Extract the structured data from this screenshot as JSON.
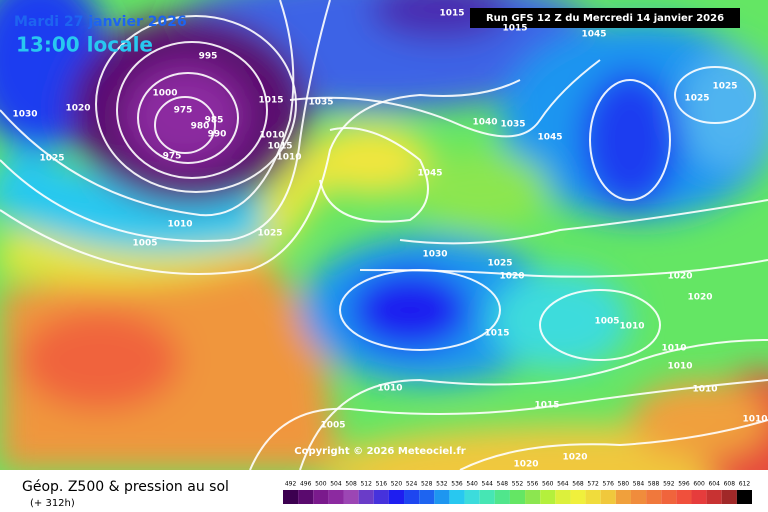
{
  "header": {
    "date": "Mardi 27 janvier 2026",
    "time": "13:00 locale",
    "run": "Run GFS 12 Z du Mercredi 14 janvier 2026"
  },
  "copyright": "Copyright © 2026 Meteociel.fr",
  "footer": {
    "title": "Géop. Z500 & pression au sol",
    "lead": "(+ 312h)"
  },
  "legend": {
    "values": [
      492,
      496,
      500,
      504,
      508,
      512,
      516,
      520,
      524,
      528,
      532,
      536,
      540,
      544,
      548,
      552,
      556,
      560,
      564,
      568,
      572,
      576,
      580,
      584,
      588,
      592,
      596,
      600,
      604,
      608,
      612
    ],
    "colors": [
      "#3c0050",
      "#5a0a6e",
      "#7a1a8c",
      "#8c2aa0",
      "#9c46b4",
      "#6a3cc8",
      "#4632dc",
      "#1e1ef0",
      "#1e46f0",
      "#1e64f0",
      "#1e96f0",
      "#28c8f0",
      "#3cdcdc",
      "#46e6b4",
      "#50e68c",
      "#64e664",
      "#8ce650",
      "#b4f03c",
      "#dcf03c",
      "#f0f03c",
      "#f0dc3c",
      "#f0c83c",
      "#f0a03c",
      "#f08c3c",
      "#f0783c",
      "#f0643c",
      "#f0503c",
      "#e63c3c",
      "#c83232",
      "#a02828",
      "#000000"
    ]
  },
  "isobar_labels": [
    1015,
    1045,
    1015,
    995,
    1000,
    975,
    985,
    980,
    990,
    975,
    1015,
    1035,
    1040,
    1035,
    1045,
    1025,
    1025,
    1020,
    1030,
    1025,
    1010,
    1015,
    1010,
    1045,
    1010,
    1005,
    1025,
    1030,
    1025,
    1020,
    1020,
    1020,
    1005,
    1010,
    1015,
    1010,
    1010,
    1010,
    1010,
    1015,
    1005,
    1010,
    1020,
    1020
  ]
}
